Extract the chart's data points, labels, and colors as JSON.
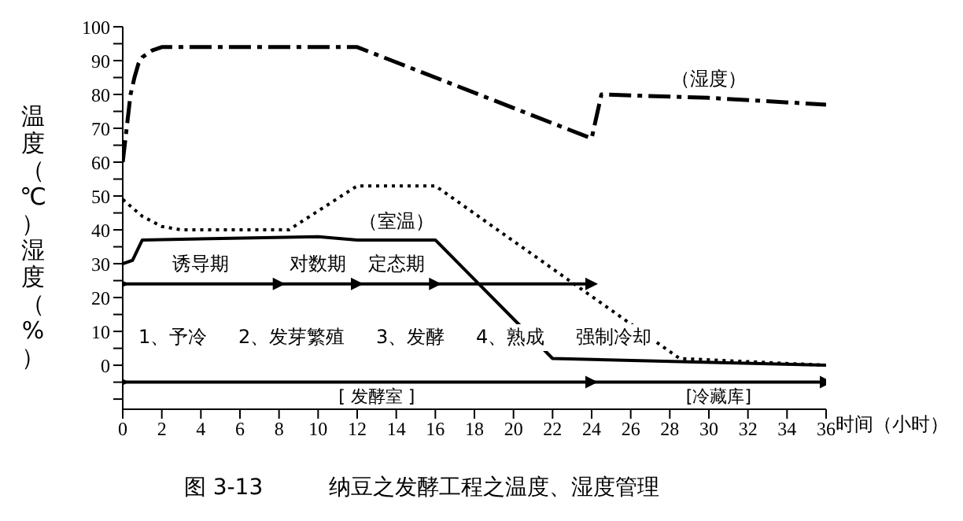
{
  "chart_data": {
    "type": "line",
    "title": "图 3-13　　　纳豆之发酵工程之温度、湿度管理",
    "xlabel": "时间（小时）",
    "ylabel": "温度（℃）湿度（%）",
    "xlim": [
      0,
      36
    ],
    "xticks": [
      0,
      2,
      4,
      6,
      8,
      10,
      12,
      14,
      16,
      18,
      20,
      22,
      24,
      26,
      28,
      30,
      32,
      34,
      36
    ],
    "ylim": [
      -13,
      100
    ],
    "yticks": [
      {
        "value": -10,
        "label": null
      },
      {
        "value": -5,
        "label": null
      },
      0,
      {
        "value": 5,
        "label": null
      },
      10,
      {
        "value": 15,
        "label": null
      },
      20,
      {
        "value": 25,
        "label": null
      },
      30,
      {
        "value": 35,
        "label": null
      },
      40,
      {
        "value": 45,
        "label": null
      },
      50,
      {
        "value": 55,
        "label": null
      },
      60,
      {
        "value": 65,
        "label": null
      },
      70,
      {
        "value": 75,
        "label": null
      },
      80,
      {
        "value": 85,
        "label": null
      },
      90,
      {
        "value": 95,
        "label": null
      },
      100
    ],
    "series": [
      {
        "color": "#000000",
        "line_style": "dashed",
        "marker": "none",
        "x": [
          0,
          0.2,
          0.4,
          0.6,
          0.8,
          1,
          1.5,
          2,
          12,
          24,
          24.5,
          30,
          36
        ],
        "values": [
          60,
          70,
          80,
          85,
          89,
          91,
          93,
          94,
          94,
          67,
          80,
          79,
          77
        ]
      },
      {
        "color": "#000000",
        "line_style": "dotted",
        "marker": "none",
        "x": [
          0,
          1,
          2,
          3,
          8.5,
          12,
          16,
          28.5,
          36
        ],
        "values": [
          49,
          44,
          41,
          40,
          40,
          53,
          53,
          2,
          0
        ]
      },
      {
        "color": "#000000",
        "line_style": "solid",
        "marker": "none",
        "x": [
          0,
          0.5,
          1,
          10,
          12,
          16,
          22,
          36
        ],
        "values": [
          30,
          31,
          37,
          38,
          37,
          37,
          2,
          0
        ]
      },
      {
        "color": "#000000",
        "line_style": "solid",
        "marker": "triangle",
        "x": [
          0,
          4,
          8,
          10,
          12,
          14,
          16,
          24
        ],
        "values": [
          24,
          24,
          24,
          24,
          24,
          24,
          24,
          24
        ],
        "value_labels": [
          null,
          "诱导期",
          null,
          "对数期",
          null,
          "定态期",
          null,
          null
        ]
      },
      {
        "color": "#000000",
        "line_style": "solid",
        "marker": "triangle",
        "x": [
          0,
          13,
          24,
          30.5,
          36
        ],
        "values": [
          -5,
          -5,
          -5,
          -5,
          -5
        ],
        "value_labels": [
          null,
          "[ 发酵室 ]",
          null,
          "[冷藏库]",
          null
        ]
      }
    ],
    "annotations": [
      {
        "text": "（湿度）",
        "x": 30,
        "y": 79
      },
      {
        "text": "（室温）",
        "x": 14,
        "y": 37
      },
      "1、予冷",
      "2、发芽繁殖",
      "3、发酵",
      "4、熟成",
      "强制冷却"
    ]
  }
}
